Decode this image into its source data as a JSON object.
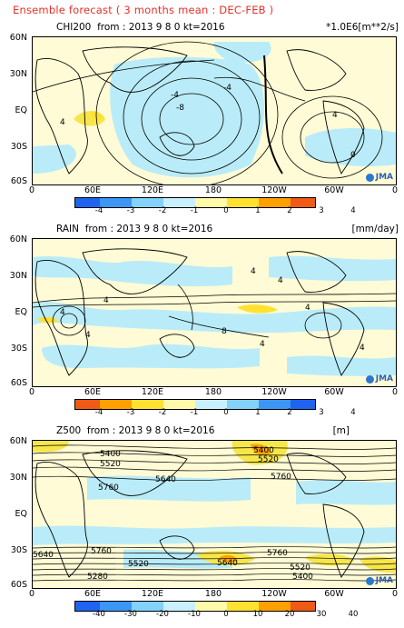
{
  "header": {
    "title": "Ensemble forecast ( 3 months mean : DEC-FEB )"
  },
  "panels": [
    {
      "id": "chi200",
      "label": "CHI200",
      "run_info": "from : 2013   9   8   0 kt=2016",
      "unit": "*1.0E6[m**2/s]",
      "contour_labels": [
        "-4",
        "-8",
        "-4",
        "4",
        "4",
        "0"
      ],
      "colorbar": [
        "-4",
        "-3",
        "-2",
        "-1",
        "0",
        "1",
        "2",
        "3",
        "4"
      ],
      "logo": "JMA"
    },
    {
      "id": "rain",
      "label": "RAIN",
      "run_info": "from : 2013   9   8   0 kt=2016",
      "unit": "[mm/day]",
      "contour_labels": [
        "4",
        "4",
        "4",
        "4",
        "8",
        "4",
        "4",
        "4",
        "4"
      ],
      "colorbar": [
        "-4",
        "-3",
        "-2",
        "-1",
        "0",
        "1",
        "2",
        "3",
        "4"
      ],
      "logo": "JMA"
    },
    {
      "id": "z500",
      "label": "Z500",
      "run_info": "from : 2013   9   8   0 kt=2016",
      "unit": "[m]",
      "contour_labels": [
        "5400",
        "5520",
        "5640",
        "5760",
        "5400",
        "5520",
        "5760",
        "5640",
        "5760",
        "5280",
        "5520",
        "5640",
        "5760",
        "5520",
        "5400"
      ],
      "colorbar": [
        "-40",
        "-30",
        "-20",
        "-10",
        "0",
        "10",
        "20",
        "30",
        "40"
      ],
      "logo": "JMA"
    }
  ],
  "axes": {
    "lat_ticks": [
      "60N",
      "30N",
      "EQ",
      "30S",
      "60S"
    ],
    "lon_ticks": [
      "0",
      "60E",
      "120E",
      "180",
      "120W",
      "60W",
      "0"
    ]
  },
  "colors": {
    "cbar_blue": [
      "#1e64f0",
      "#3c96f5",
      "#82d2fa",
      "#c8f0ff"
    ],
    "cbar_warm": [
      "#fffaaa",
      "#ffe132",
      "#ffa000",
      "#f05a14"
    ],
    "land_line": "#000000",
    "positive_fill": "#f7e64a",
    "negative_fill": "#b9ecf8",
    "base_fill": "#fffbd6"
  }
}
